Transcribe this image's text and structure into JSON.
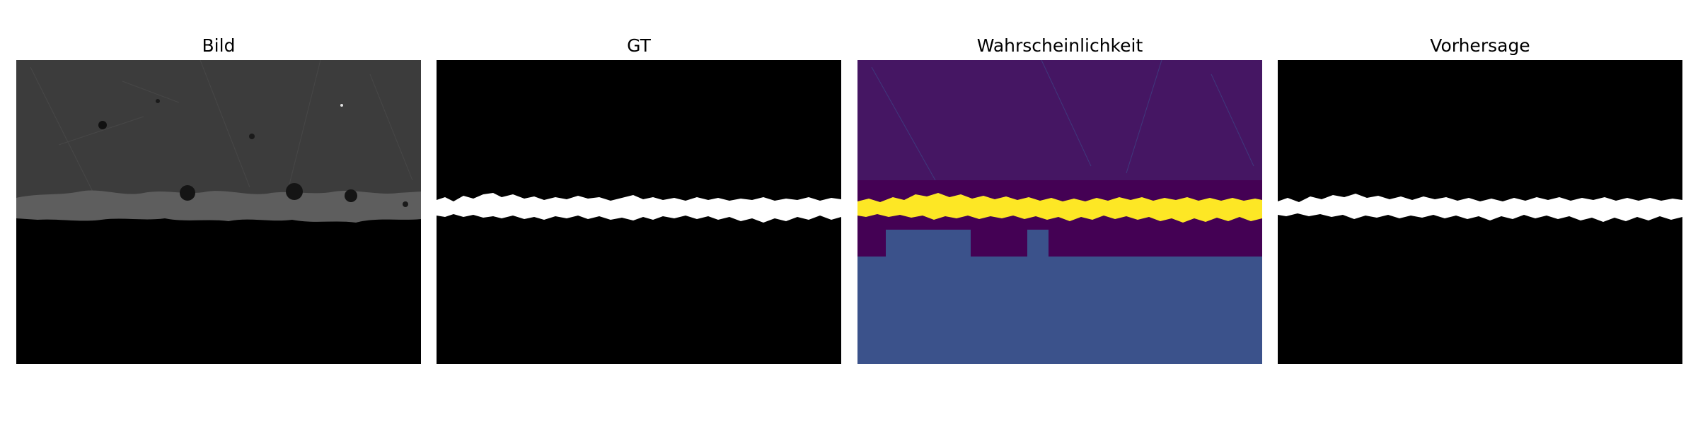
{
  "figure": {
    "panels": [
      {
        "title": "Bild",
        "kind": "micrograph",
        "colors": {
          "material": "#3d3d3d",
          "coating": "#5a5a5a",
          "background": "#000000"
        }
      },
      {
        "title": "GT",
        "kind": "ground-truth-mask",
        "colors": {
          "mask": "#ffffff",
          "background": "#000000"
        }
      },
      {
        "title": "Wahrscheinlichkeit",
        "kind": "probability-map",
        "colors": {
          "low": "#440154",
          "mid": "#3b528b",
          "high": "#fde725"
        }
      },
      {
        "title": "Vorhersage",
        "kind": "prediction-mask",
        "colors": {
          "mask": "#ffffff",
          "background": "#000000"
        }
      }
    ]
  }
}
